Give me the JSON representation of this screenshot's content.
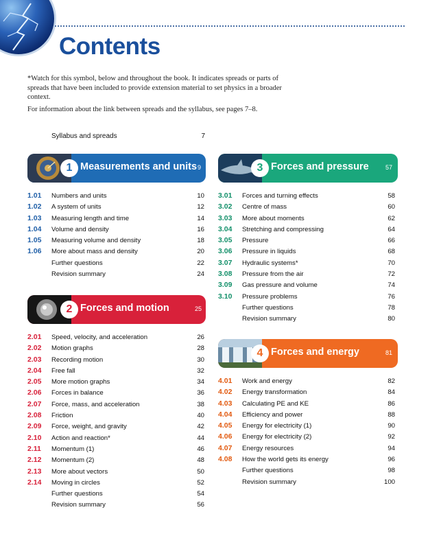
{
  "title": "Contents",
  "intro_note": "*Watch for this symbol, below and throughout the book. It indicates spreads or parts of spreads that have been included to provide extension material to set physics in a broader context.",
  "intro_info": "For information about the link between spreads and the syllabus, see pages 7–8.",
  "syllabus": {
    "label": "Syllabus and spreads",
    "page": "7"
  },
  "colors": {
    "blue": "#1f6cb5",
    "red": "#d8213a",
    "green": "#1aa77c",
    "orange": "#ef6a22"
  },
  "sections": [
    {
      "number": "1",
      "title": "Measurements and units",
      "page": "9",
      "entries": [
        {
          "num": "1.01",
          "label": "Numbers and units",
          "page": "10"
        },
        {
          "num": "1.02",
          "label": "A system of units",
          "page": "12"
        },
        {
          "num": "1.03",
          "label": "Measuring length and time",
          "page": "14"
        },
        {
          "num": "1.04",
          "label": "Volume and density",
          "page": "16"
        },
        {
          "num": "1.05",
          "label": "Measuring volume and density",
          "page": "18"
        },
        {
          "num": "1.06",
          "label": "More about mass and density",
          "page": "20"
        },
        {
          "num": "",
          "label": "Further questions",
          "page": "22"
        },
        {
          "num": "",
          "label": "Revision summary",
          "page": "24"
        }
      ]
    },
    {
      "number": "2",
      "title": "Forces and motion",
      "page": "25",
      "entries": [
        {
          "num": "2.01",
          "label": "Speed, velocity, and acceleration",
          "page": "26"
        },
        {
          "num": "2.02",
          "label": "Motion graphs",
          "page": "28"
        },
        {
          "num": "2.03",
          "label": "Recording motion",
          "page": "30"
        },
        {
          "num": "2.04",
          "label": "Free fall",
          "page": "32"
        },
        {
          "num": "2.05",
          "label": "More motion graphs",
          "page": "34"
        },
        {
          "num": "2.06",
          "label": "Forces in balance",
          "page": "36"
        },
        {
          "num": "2.07",
          "label": "Force, mass, and acceleration",
          "page": "38"
        },
        {
          "num": "2.08",
          "label": "Friction",
          "page": "40"
        },
        {
          "num": "2.09",
          "label": "Force, weight, and gravity",
          "page": "42"
        },
        {
          "num": "2.10",
          "label": "Action and reaction*",
          "page": "44"
        },
        {
          "num": "2.11",
          "label": "Momentum (1)",
          "page": "46"
        },
        {
          "num": "2.12",
          "label": "Momentum (2)",
          "page": "48"
        },
        {
          "num": "2.13",
          "label": "More about vectors",
          "page": "50"
        },
        {
          "num": "2.14",
          "label": "Moving in circles",
          "page": "52"
        },
        {
          "num": "",
          "label": "Further questions",
          "page": "54"
        },
        {
          "num": "",
          "label": "Revision summary",
          "page": "56"
        }
      ]
    },
    {
      "number": "3",
      "title": "Forces and pressure",
      "page": "57",
      "entries": [
        {
          "num": "3.01",
          "label": "Forces and turning effects",
          "page": "58"
        },
        {
          "num": "3.02",
          "label": "Centre of mass",
          "page": "60"
        },
        {
          "num": "3.03",
          "label": "More about moments",
          "page": "62"
        },
        {
          "num": "3.04",
          "label": "Stretching and compressing",
          "page": "64"
        },
        {
          "num": "3.05",
          "label": "Pressure",
          "page": "66"
        },
        {
          "num": "3.06",
          "label": "Pressure in liquids",
          "page": "68"
        },
        {
          "num": "3.07",
          "label": "Hydraulic systems*",
          "page": "70"
        },
        {
          "num": "3.08",
          "label": "Pressure from the air",
          "page": "72"
        },
        {
          "num": "3.09",
          "label": "Gas pressure and volume",
          "page": "74"
        },
        {
          "num": "3.10",
          "label": "Pressure problems",
          "page": "76"
        },
        {
          "num": "",
          "label": "Further questions",
          "page": "78"
        },
        {
          "num": "",
          "label": "Revision summary",
          "page": "80"
        }
      ]
    },
    {
      "number": "4",
      "title": "Forces and energy",
      "page": "81",
      "entries": [
        {
          "num": "4.01",
          "label": "Work and energy",
          "page": "82"
        },
        {
          "num": "4.02",
          "label": "Energy transformation",
          "page": "84"
        },
        {
          "num": "4.03",
          "label": "Calculating PE and KE",
          "page": "86"
        },
        {
          "num": "4.04",
          "label": "Efficiency and power",
          "page": "88"
        },
        {
          "num": "4.05",
          "label": "Energy for electricity (1)",
          "page": "90"
        },
        {
          "num": "4.06",
          "label": "Energy for electricity (2)",
          "page": "92"
        },
        {
          "num": "4.07",
          "label": "Energy resources",
          "page": "94"
        },
        {
          "num": "4.08",
          "label": "How the world gets its energy",
          "page": "96"
        },
        {
          "num": "",
          "label": "Further questions",
          "page": "98"
        },
        {
          "num": "",
          "label": "Revision summary",
          "page": "100"
        }
      ]
    }
  ]
}
